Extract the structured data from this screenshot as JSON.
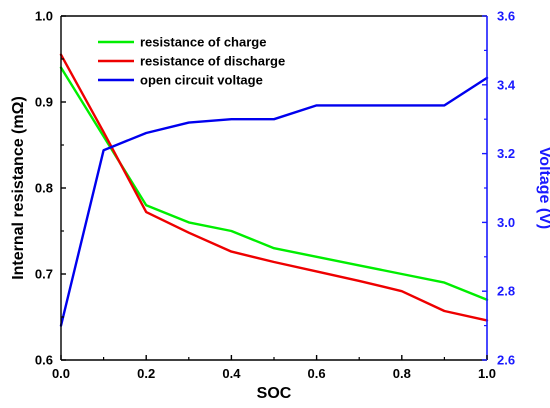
{
  "chart_data": {
    "type": "line",
    "xlabel": "SOC",
    "ylabel": "Internal resistance (mΩ)",
    "y2label": "Voltage (V)",
    "xlim": [
      0.0,
      1.0
    ],
    "ylim": [
      0.6,
      1.0
    ],
    "y2lim": [
      2.6,
      3.6
    ],
    "x_ticks": [
      "0.0",
      "0.2",
      "0.4",
      "0.6",
      "0.8",
      "1.0"
    ],
    "y_ticks": [
      "0.6",
      "0.7",
      "0.8",
      "0.9",
      "1.0"
    ],
    "y2_ticks": [
      "2.6",
      "2.8",
      "3.0",
      "3.2",
      "3.4",
      "3.6"
    ],
    "legend_position": "top-left",
    "series": [
      {
        "name": "resistance of charge",
        "axis": "left",
        "color": "#00ee00",
        "x": [
          0.0,
          0.1,
          0.2,
          0.3,
          0.4,
          0.5,
          0.6,
          0.7,
          0.8,
          0.9,
          1.0
        ],
        "y": [
          0.94,
          0.86,
          0.78,
          0.76,
          0.75,
          0.73,
          0.72,
          0.71,
          0.7,
          0.69,
          0.67
        ]
      },
      {
        "name": "resistance of discharge",
        "axis": "left",
        "color": "#ee0000",
        "x": [
          0.0,
          0.1,
          0.2,
          0.3,
          0.4,
          0.5,
          0.6,
          0.7,
          0.8,
          0.9,
          1.0
        ],
        "y": [
          0.955,
          0.865,
          0.772,
          0.748,
          0.726,
          0.714,
          0.703,
          0.692,
          0.68,
          0.657,
          0.646
        ]
      },
      {
        "name": "open circuit voltage",
        "axis": "right",
        "color": "#0000ee",
        "x": [
          0.0,
          0.1,
          0.2,
          0.3,
          0.4,
          0.5,
          0.6,
          0.7,
          0.8,
          0.9,
          1.0
        ],
        "y": [
          2.7,
          3.21,
          3.26,
          3.29,
          3.3,
          3.3,
          3.34,
          3.34,
          3.34,
          3.34,
          3.42
        ]
      }
    ]
  }
}
